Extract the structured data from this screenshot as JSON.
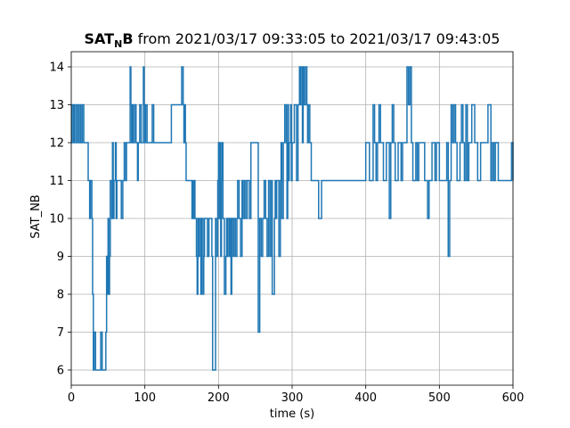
{
  "chart_data": {
    "type": "line",
    "title": {
      "main_bold": "SAT",
      "subscript_bold": "N",
      "bold_suffix": "B",
      "rest": " from 2021/03/17 09:33:05 to 2021/03/17 09:43:05"
    },
    "xlabel": "time (s)",
    "ylabel": "SAT_NB",
    "xlim": [
      0,
      600
    ],
    "ylim": [
      5.6,
      14.4
    ],
    "x_ticks": [
      0,
      100,
      200,
      300,
      400,
      500,
      600
    ],
    "y_ticks": [
      6,
      7,
      8,
      9,
      10,
      11,
      12,
      13,
      14
    ],
    "grid": true,
    "step": true,
    "series": [
      {
        "color": "#1f77b4",
        "points": [
          [
            0,
            12
          ],
          [
            1,
            13
          ],
          [
            3,
            12
          ],
          [
            4,
            13
          ],
          [
            6,
            12
          ],
          [
            8,
            13
          ],
          [
            10,
            12
          ],
          [
            12,
            13
          ],
          [
            13,
            12
          ],
          [
            15,
            13
          ],
          [
            17,
            12
          ],
          [
            20,
            12
          ],
          [
            22,
            12
          ],
          [
            23,
            11
          ],
          [
            25,
            10
          ],
          [
            26,
            11
          ],
          [
            28,
            10
          ],
          [
            29,
            8
          ],
          [
            30,
            6
          ],
          [
            31,
            7
          ],
          [
            33,
            6
          ],
          [
            36,
            6
          ],
          [
            40,
            7
          ],
          [
            42,
            6
          ],
          [
            46,
            6
          ],
          [
            47,
            7
          ],
          [
            48,
            9
          ],
          [
            49,
            8
          ],
          [
            50,
            10
          ],
          [
            51,
            8
          ],
          [
            52,
            9
          ],
          [
            53,
            11
          ],
          [
            55,
            10
          ],
          [
            56,
            12
          ],
          [
            57,
            10
          ],
          [
            58,
            11
          ],
          [
            60,
            12
          ],
          [
            61,
            10
          ],
          [
            62,
            11
          ],
          [
            66,
            11
          ],
          [
            68,
            10
          ],
          [
            70,
            11
          ],
          [
            72,
            12
          ],
          [
            74,
            11
          ],
          [
            75,
            12
          ],
          [
            78,
            12
          ],
          [
            80,
            14
          ],
          [
            81,
            13
          ],
          [
            82,
            12
          ],
          [
            83,
            13
          ],
          [
            84,
            12
          ],
          [
            86,
            13
          ],
          [
            88,
            12
          ],
          [
            90,
            11
          ],
          [
            91,
            12
          ],
          [
            93,
            13
          ],
          [
            95,
            12
          ],
          [
            98,
            14
          ],
          [
            99,
            13
          ],
          [
            100,
            12
          ],
          [
            101,
            13
          ],
          [
            103,
            12
          ],
          [
            105,
            12
          ],
          [
            110,
            13
          ],
          [
            112,
            12
          ],
          [
            116,
            12
          ],
          [
            130,
            12
          ],
          [
            136,
            13
          ],
          [
            144,
            13
          ],
          [
            150,
            14
          ],
          [
            152,
            13
          ],
          [
            153,
            12
          ],
          [
            154,
            13
          ],
          [
            155,
            12
          ],
          [
            156,
            11
          ],
          [
            158,
            11
          ],
          [
            163,
            11
          ],
          [
            164,
            10
          ],
          [
            165,
            11
          ],
          [
            166,
            10
          ],
          [
            167,
            11
          ],
          [
            168,
            10
          ],
          [
            170,
            9
          ],
          [
            171,
            8
          ],
          [
            172,
            10
          ],
          [
            173,
            9
          ],
          [
            174,
            10
          ],
          [
            176,
            8
          ],
          [
            177,
            10
          ],
          [
            179,
            8
          ],
          [
            180,
            9
          ],
          [
            181,
            10
          ],
          [
            183,
            10
          ],
          [
            185,
            9
          ],
          [
            187,
            10
          ],
          [
            188,
            10
          ],
          [
            189,
            10
          ],
          [
            191,
            9
          ],
          [
            192,
            6
          ],
          [
            196,
            10
          ],
          [
            197,
            9
          ],
          [
            199,
            11
          ],
          [
            200,
            12
          ],
          [
            201,
            10
          ],
          [
            202,
            12
          ],
          [
            203,
            9
          ],
          [
            204,
            11
          ],
          [
            205,
            12
          ],
          [
            206,
            10
          ],
          [
            208,
            8
          ],
          [
            210,
            9
          ],
          [
            211,
            10
          ],
          [
            212,
            9
          ],
          [
            213,
            10
          ],
          [
            215,
            9
          ],
          [
            216,
            10
          ],
          [
            217,
            8
          ],
          [
            218,
            10
          ],
          [
            220,
            9
          ],
          [
            221,
            10
          ],
          [
            223,
            9
          ],
          [
            225,
            10
          ],
          [
            226,
            11
          ],
          [
            228,
            10
          ],
          [
            230,
            9
          ],
          [
            232,
            11
          ],
          [
            233,
            10
          ],
          [
            235,
            11
          ],
          [
            237,
            10
          ],
          [
            239,
            11
          ],
          [
            242,
            10
          ],
          [
            244,
            12
          ],
          [
            250,
            12
          ],
          [
            254,
            7
          ],
          [
            256,
            10
          ],
          [
            258,
            9
          ],
          [
            260,
            10
          ],
          [
            262,
            11
          ],
          [
            264,
            10
          ],
          [
            266,
            9
          ],
          [
            268,
            11
          ],
          [
            270,
            9
          ],
          [
            272,
            11
          ],
          [
            273,
            8
          ],
          [
            276,
            10
          ],
          [
            277,
            11
          ],
          [
            278,
            10
          ],
          [
            279,
            11
          ],
          [
            282,
            9
          ],
          [
            284,
            11
          ],
          [
            285,
            12
          ],
          [
            286,
            10
          ],
          [
            288,
            12
          ],
          [
            290,
            13
          ],
          [
            292,
            12
          ],
          [
            293,
            10
          ],
          [
            294,
            13
          ],
          [
            295,
            11
          ],
          [
            296,
            12
          ],
          [
            298,
            13
          ],
          [
            299,
            11
          ],
          [
            300,
            12
          ],
          [
            301,
            12
          ],
          [
            303,
            13
          ],
          [
            306,
            11
          ],
          [
            308,
            13
          ],
          [
            310,
            14
          ],
          [
            311,
            13
          ],
          [
            312,
            14
          ],
          [
            314,
            12
          ],
          [
            315,
            14
          ],
          [
            316,
            13
          ],
          [
            318,
            14
          ],
          [
            320,
            13
          ],
          [
            321,
            12
          ],
          [
            322,
            13
          ],
          [
            324,
            12
          ],
          [
            326,
            11
          ],
          [
            330,
            11
          ],
          [
            336,
            10
          ],
          [
            340,
            11
          ],
          [
            345,
            11
          ],
          [
            348,
            11
          ],
          [
            355,
            11
          ],
          [
            360,
            11
          ],
          [
            365,
            11
          ],
          [
            380,
            11
          ],
          [
            384,
            11
          ],
          [
            400,
            12
          ],
          [
            405,
            11
          ],
          [
            410,
            13
          ],
          [
            412,
            12
          ],
          [
            414,
            11
          ],
          [
            416,
            12
          ],
          [
            418,
            13
          ],
          [
            420,
            12
          ],
          [
            424,
            11
          ],
          [
            428,
            12
          ],
          [
            430,
            12
          ],
          [
            432,
            10
          ],
          [
            434,
            12
          ],
          [
            436,
            13
          ],
          [
            438,
            12
          ],
          [
            440,
            11
          ],
          [
            444,
            12
          ],
          [
            448,
            11
          ],
          [
            450,
            12
          ],
          [
            456,
            14
          ],
          [
            458,
            13
          ],
          [
            460,
            14
          ],
          [
            462,
            12
          ],
          [
            464,
            11
          ],
          [
            468,
            12
          ],
          [
            470,
            11
          ],
          [
            472,
            12
          ],
          [
            480,
            11
          ],
          [
            484,
            10
          ],
          [
            486,
            11
          ],
          [
            490,
            12
          ],
          [
            494,
            11
          ],
          [
            496,
            12
          ],
          [
            500,
            11
          ],
          [
            502,
            11
          ],
          [
            510,
            12
          ],
          [
            512,
            9
          ],
          [
            514,
            11
          ],
          [
            516,
            13
          ],
          [
            518,
            12
          ],
          [
            520,
            13
          ],
          [
            522,
            12
          ],
          [
            524,
            11
          ],
          [
            528,
            12
          ],
          [
            530,
            13
          ],
          [
            532,
            12
          ],
          [
            534,
            11
          ],
          [
            536,
            13
          ],
          [
            538,
            11
          ],
          [
            540,
            12
          ],
          [
            544,
            13
          ],
          [
            548,
            12
          ],
          [
            552,
            11
          ],
          [
            556,
            12
          ],
          [
            560,
            12
          ],
          [
            566,
            13
          ],
          [
            570,
            11
          ],
          [
            572,
            12
          ],
          [
            574,
            11
          ],
          [
            576,
            12
          ],
          [
            580,
            11
          ],
          [
            584,
            11
          ],
          [
            590,
            11
          ],
          [
            594,
            11
          ],
          [
            598,
            12
          ],
          [
            600,
            11
          ]
        ]
      }
    ]
  }
}
